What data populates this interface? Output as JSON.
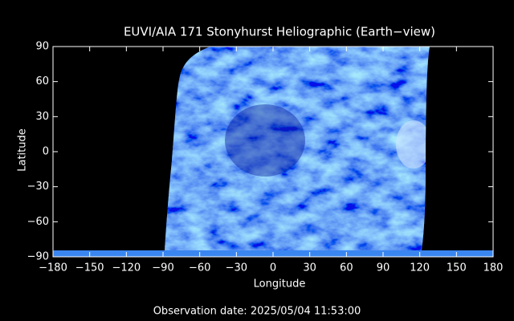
{
  "chart_data": {
    "type": "image",
    "title": "EUVI/AIA 171 Stonyhurst Heliographic (Earth−view)",
    "xlabel": "Longitude",
    "ylabel": "Latitude",
    "annotation": "Observation date: 2025/05/04 11:53:00",
    "xlim": [
      -180,
      180
    ],
    "ylim": [
      -90,
      90
    ],
    "xticks": [
      {
        "value": -180,
        "label": "−180"
      },
      {
        "value": -150,
        "label": "−150"
      },
      {
        "value": -120,
        "label": "−120"
      },
      {
        "value": -90,
        "label": "−90"
      },
      {
        "value": -60,
        "label": "−60"
      },
      {
        "value": -30,
        "label": "−30"
      },
      0,
      30,
      60,
      90,
      120,
      150,
      180
    ],
    "yticks": [
      {
        "value": -90,
        "label": "−90"
      },
      {
        "value": -60,
        "label": "−60"
      },
      {
        "value": -30,
        "label": "−30"
      },
      0,
      30,
      60,
      90
    ]
  }
}
